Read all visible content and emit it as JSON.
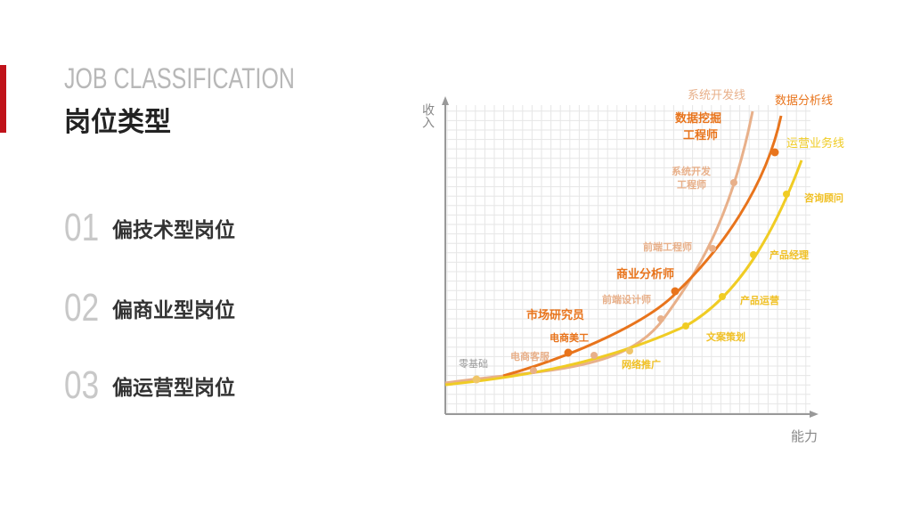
{
  "header": {
    "title_en": "JOB CLASSIFICATION",
    "title_cn": "岗位类型"
  },
  "list": [
    {
      "num": "01",
      "label": "偏技术型岗位"
    },
    {
      "num": "02",
      "label": "偏商业型岗位"
    },
    {
      "num": "03",
      "label": "偏运营型岗位"
    }
  ],
  "colors": {
    "accent": "#c0121a",
    "system_line": "#e8b08a",
    "data_line": "#e8741c",
    "ops_line": "#f0cc24"
  },
  "diagram": {
    "y_axis_label": "收入",
    "x_axis_label": "能力",
    "start_label": "零基础",
    "lines": [
      {
        "name": "系统开发线",
        "color": "#e8b08a",
        "nodes": [
          "电商客服",
          "前端设计师",
          "前端工程师",
          "系统开发工程师"
        ]
      },
      {
        "name": "数据分析线",
        "color": "#e8741c",
        "nodes": [
          "电商美工",
          "市场研究员",
          "商业分析师",
          "数据挖掘工程师"
        ]
      },
      {
        "name": "运营业务线",
        "color": "#f0cc24",
        "nodes": [
          "网络推广",
          "文案策划",
          "产品运营",
          "产品经理",
          "咨询顾问"
        ]
      }
    ]
  }
}
